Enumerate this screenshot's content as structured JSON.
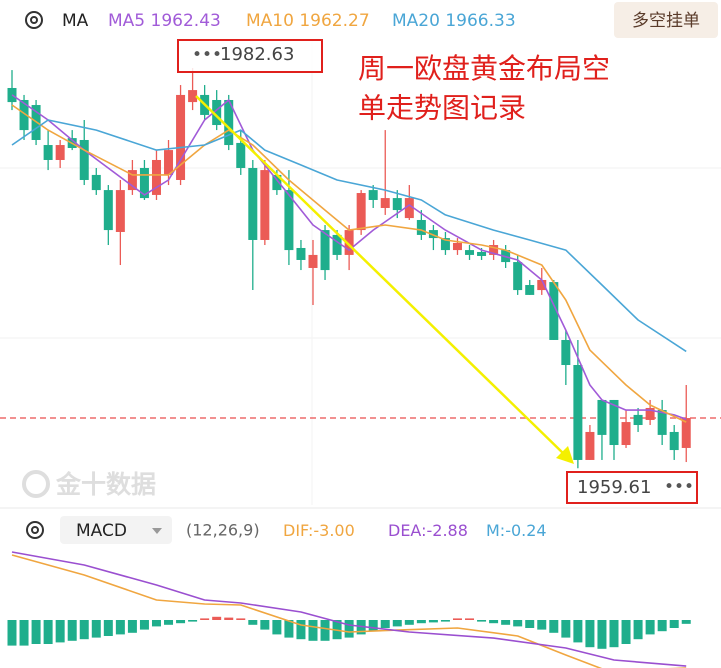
{
  "chart_data": {
    "type": "candlestick",
    "indicator": "MA",
    "button": "多空挂单",
    "annotation": "周一欧盘黄金布局空单走势图记录",
    "watermark": "金十数据",
    "up_color": "#eb5b56",
    "down_color": "#1fae8c",
    "ylim": [
      1957.5,
      1986.54
    ],
    "open": [
      1981.48,
      1980.79,
      1980.5,
      1978.2,
      1977.34,
      1978.6,
      1978.49,
      1976.48,
      1975.61,
      1973.2,
      1975.61,
      1976.88,
      1975.33,
      1976.48,
      1976.19,
      1980.67,
      1981.08,
      1980.79,
      1980.79,
      1978.32,
      1976.88,
      1972.74,
      1976.48,
      1975.61,
      1972.28,
      1971.13,
      1973.31,
      1973.03,
      1971.88,
      1973.31,
      1975.61,
      1974.58,
      1975.15,
      1974.0,
      1973.89,
      1973.31,
      1972.85,
      1972.16,
      1972.16,
      1972.05,
      1971.88,
      1972.16,
      1971.47,
      1970.15,
      1969.86,
      1970.32,
      1966.99,
      1965.55,
      1960.09,
      1963.54,
      1963.54,
      1960.95,
      1962.68,
      1962.39,
      1962.96,
      1961.7,
      1960.78
    ],
    "high": [
      1982.51,
      1981.08,
      1980.79,
      1979.06,
      1978.49,
      1979.06,
      1979.64,
      1976.88,
      1975.9,
      1976.19,
      1977.34,
      1977.34,
      1977.91,
      1978.49,
      1981.65,
      1982.63,
      1981.65,
      1981.36,
      1981.08,
      1979.06,
      1977.34,
      1977.34,
      1976.76,
      1976.76,
      1972.74,
      1972.74,
      1973.6,
      1973.31,
      1973.6,
      1975.61,
      1975.9,
      1979.06,
      1975.61,
      1975.9,
      1974.46,
      1973.6,
      1973.2,
      1972.85,
      1972.45,
      1972.28,
      1972.74,
      1972.45,
      1971.88,
      1970.44,
      1971.13,
      1970.44,
      1967.56,
      1966.99,
      1962.1,
      1963.54,
      1963.54,
      1962.96,
      1963.08,
      1963.54,
      1963.54,
      1962.1,
      1964.4
    ],
    "low": [
      1980.21,
      1978.49,
      1978.2,
      1976.76,
      1976.88,
      1977.91,
      1975.9,
      1975.33,
      1972.45,
      1971.3,
      1975.33,
      1975.04,
      1975.04,
      1975.9,
      1975.9,
      1980.21,
      1979.64,
      1979.06,
      1977.91,
      1976.48,
      1969.86,
      1972.45,
      1975.33,
      1971.3,
      1971.01,
      1969.0,
      1970.44,
      1971.59,
      1971.01,
      1973.03,
      1974.58,
      1974.18,
      1974.0,
      1973.89,
      1972.74,
      1972.16,
      1971.88,
      1971.88,
      1971.59,
      1971.59,
      1971.59,
      1971.13,
      1969.58,
      1969.58,
      1969.58,
      1966.99,
      1964.4,
      1959.61,
      1960.09,
      1960.09,
      1960.09,
      1960.78,
      1961.7,
      1962.1,
      1960.95,
      1960.09,
      1959.97
    ],
    "close": [
      1980.67,
      1979.06,
      1978.49,
      1977.34,
      1978.2,
      1978.03,
      1976.19,
      1975.61,
      1973.31,
      1975.61,
      1976.76,
      1975.15,
      1977.34,
      1977.91,
      1981.08,
      1981.36,
      1979.93,
      1979.35,
      1978.2,
      1976.88,
      1972.74,
      1976.76,
      1975.61,
      1972.16,
      1971.59,
      1971.88,
      1971.01,
      1971.88,
      1973.31,
      1975.44,
      1975.04,
      1975.15,
      1974.46,
      1975.15,
      1973.03,
      1972.85,
      1972.16,
      1972.57,
      1971.88,
      1971.82,
      1972.45,
      1971.47,
      1969.86,
      1969.58,
      1970.44,
      1966.99,
      1965.55,
      1960.09,
      1961.7,
      1961.53,
      1960.95,
      1962.27,
      1962.1,
      1963.08,
      1961.53,
      1960.66,
      1962.5
    ],
    "series": [
      {
        "name": "MA5",
        "color": "#a15bd8",
        "x": [
          0,
          3,
          6,
          11,
          13,
          16,
          18,
          20,
          23,
          25,
          28,
          30,
          33,
          36,
          39,
          42,
          44,
          46,
          48,
          49,
          51,
          53,
          55,
          56
        ],
        "values": [
          1981.08,
          1979.64,
          1977.91,
          1975.33,
          1976.19,
          1979.64,
          1980.79,
          1977.91,
          1975.33,
          1973.6,
          1972.16,
          1973.31,
          1974.75,
          1973.31,
          1972.16,
          1971.59,
          1970.44,
          1967.56,
          1964.4,
          1963.54,
          1962.96,
          1962.96,
          1962.68,
          1962.43
        ]
      },
      {
        "name": "MA10",
        "color": "#f0a640",
        "x": [
          0,
          3,
          6,
          10,
          13,
          16,
          18,
          20,
          23,
          26,
          28,
          31,
          34,
          36,
          39,
          41,
          44,
          46,
          48,
          51,
          53,
          56
        ],
        "values": [
          1980.5,
          1979.06,
          1977.91,
          1976.48,
          1976.48,
          1978.2,
          1979.06,
          1978.2,
          1976.19,
          1974.46,
          1973.31,
          1973.6,
          1973.31,
          1972.74,
          1972.45,
          1972.16,
          1971.3,
          1969.29,
          1966.41,
          1964.4,
          1963.25,
          1962.27
        ]
      },
      {
        "name": "MA20",
        "color": "#4aa6d6",
        "x": [
          0,
          3,
          7,
          12,
          16,
          19,
          21,
          24,
          27,
          31,
          34,
          36,
          40,
          43,
          46,
          49,
          52,
          56
        ],
        "values": [
          1978.2,
          1979.64,
          1979.06,
          1977.91,
          1978.2,
          1979.06,
          1977.91,
          1977.05,
          1976.19,
          1975.61,
          1975.04,
          1974.18,
          1973.31,
          1972.74,
          1972.16,
          1970.15,
          1968.14,
          1966.33
        ]
      }
    ],
    "macd": {
      "name": "MACD",
      "params": "(12,26,9)",
      "ylim": [
        -3.3,
        4.5
      ],
      "hist_up_color": "#eb5b56",
      "hist_down_color": "#1fae8c",
      "hist": [
        -1.6,
        -1.6,
        -1.5,
        -1.5,
        -1.4,
        -1.3,
        -1.2,
        -1.1,
        -1.0,
        -0.9,
        -0.8,
        -0.6,
        -0.4,
        -0.3,
        -0.2,
        -0.1,
        0.1,
        0.2,
        0.15,
        0.1,
        -0.3,
        -0.6,
        -0.9,
        -1.1,
        -1.2,
        -1.3,
        -1.3,
        -1.2,
        -1.1,
        -0.9,
        -0.7,
        -0.5,
        -0.4,
        -0.3,
        -0.2,
        -0.15,
        -0.1,
        0.1,
        0.1,
        -0.1,
        -0.2,
        -0.3,
        -0.4,
        -0.5,
        -0.6,
        -0.8,
        -1.1,
        -1.4,
        -1.7,
        -1.8,
        -1.7,
        -1.5,
        -1.2,
        -0.9,
        -0.7,
        -0.5,
        -0.24
      ],
      "hist_label": "M:",
      "hist_value_label": "-0.24",
      "lines": [
        {
          "name": "DIF:",
          "color": "#f0a640",
          "value_label": "-3.00",
          "x": [
            0,
            6,
            12,
            16,
            19,
            24,
            28,
            32,
            37,
            42,
            46,
            49,
            53,
            56
          ],
          "values": [
            4.06,
            2.81,
            1.25,
            1.0,
            0.94,
            -0.31,
            -0.75,
            -0.63,
            -0.5,
            -1.0,
            -2.19,
            -3.05,
            -3.1,
            -3.0
          ]
        },
        {
          "name": "DEA:",
          "color": "#9a4fd0",
          "value_label": "-2.88",
          "x": [
            0,
            6,
            12,
            16,
            19,
            24,
            28,
            33,
            40,
            46,
            50,
            56
          ],
          "values": [
            4.25,
            3.44,
            2.19,
            1.25,
            1.06,
            0.5,
            -0.31,
            -0.75,
            -1.13,
            -1.75,
            -2.5,
            -2.88
          ]
        }
      ]
    }
  }
}
